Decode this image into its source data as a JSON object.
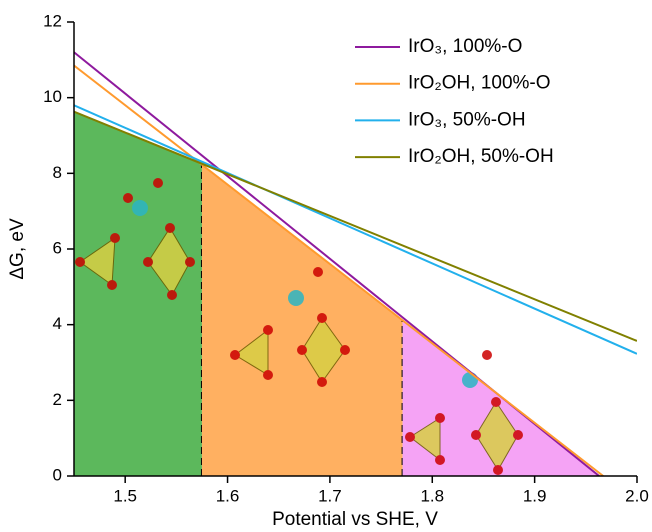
{
  "chart_data": {
    "type": "line",
    "xlabel": "Potential vs SHE, V",
    "ylabel": "ΔG, eV",
    "xlim": [
      1.45,
      2.0
    ],
    "ylim": [
      0,
      12
    ],
    "xticks": [
      1.5,
      1.6,
      1.7,
      1.8,
      1.9,
      {
        "value": 2.0,
        "label": "2.0"
      }
    ],
    "yticks": [
      0,
      2,
      4,
      6,
      8,
      10,
      12
    ],
    "legend": "top-right",
    "series": [
      {
        "name": "IrO₃, 100%-O",
        "color": "#8e1a9e",
        "x": [
          1.45,
          1.963
        ],
        "values": [
          11.2,
          0
        ]
      },
      {
        "name": "IrO₂OH, 100%-O",
        "color": "#ff9a2e",
        "x": [
          1.45,
          1.967
        ],
        "values": [
          10.85,
          0
        ]
      },
      {
        "name": "IrO₃, 50%-OH",
        "color": "#22b0ec",
        "x": [
          1.45,
          2.0
        ],
        "values": [
          9.8,
          3.23
        ]
      },
      {
        "name": "IrO₂OH, 50%-OH",
        "color": "#808000",
        "x": [
          1.45,
          2.0
        ],
        "values": [
          9.63,
          3.57
        ]
      }
    ],
    "regions": [
      {
        "x": [
          1.45,
          1.575
        ],
        "color": "#5cb85c"
      },
      {
        "x": [
          1.575,
          1.771
        ],
        "color": "#ffb061"
      },
      {
        "x": [
          1.771,
          1.963
        ],
        "color": "#f5a3f5"
      }
    ]
  }
}
